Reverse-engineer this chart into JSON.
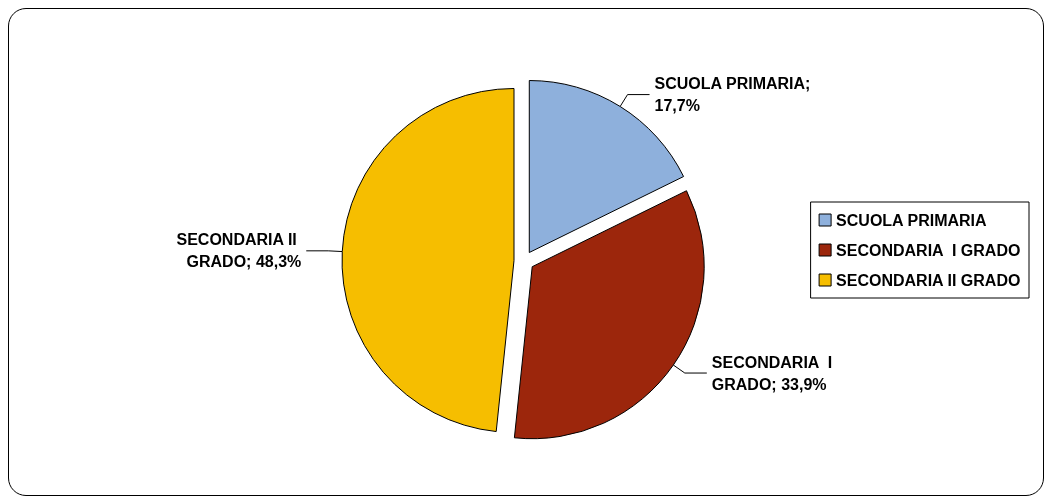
{
  "chart_data": {
    "type": "pie",
    "categories": [
      "SCUOLA PRIMARIA",
      "SECONDARIA  I GRADO",
      "SECONDARIA II GRADO"
    ],
    "values": [
      17.7,
      33.9,
      48.3
    ],
    "value_labels": [
      "SCUOLA PRIMARIA; 17,7%",
      "SECONDARIA  I GRADO; 33,9%",
      "SECONDARIA II GRADO; 48,3%"
    ],
    "colors": [
      "#8eb0dc",
      "#9c260c",
      "#f6be00"
    ],
    "legend": "right"
  }
}
